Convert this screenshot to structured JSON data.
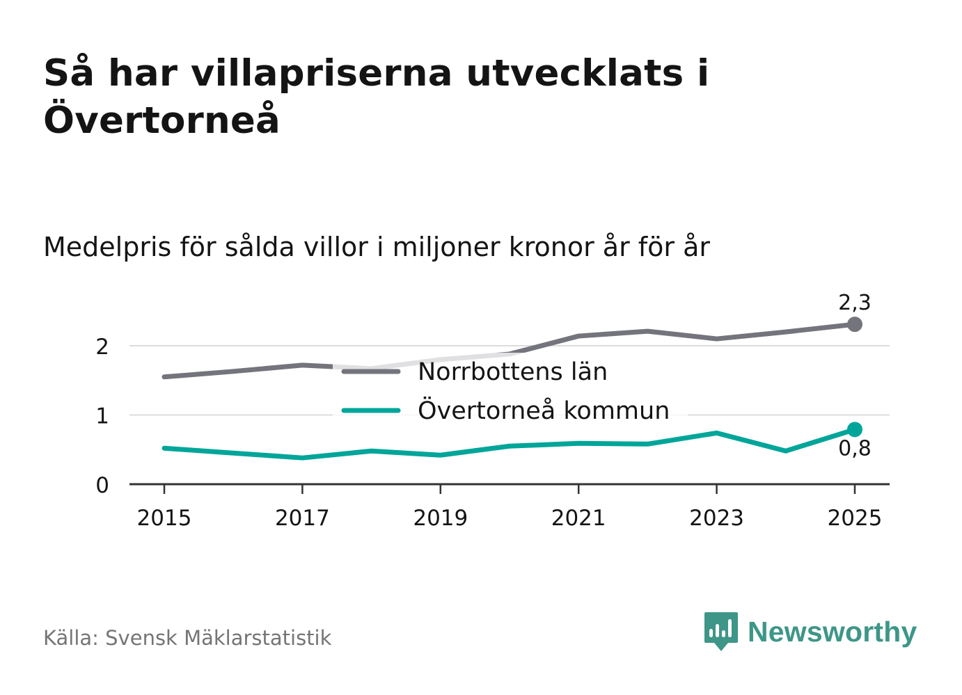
{
  "title": "Så har villapriserna utvecklats i Övertorneå",
  "subtitle": "Medelpris för sålda villor i miljoner kronor år för år",
  "source": "Källa: Svensk Mäklarstatistik",
  "brand": {
    "name": "Newsworthy",
    "icon": "newsworthy-logo-icon",
    "color": "#3e9688"
  },
  "chart_data": {
    "type": "line",
    "x": [
      2015,
      2016,
      2017,
      2018,
      2019,
      2020,
      2021,
      2022,
      2023,
      2024,
      2025
    ],
    "xticks": [
      "2015",
      "2017",
      "2019",
      "2021",
      "2023",
      "2025"
    ],
    "yticks": [
      "0",
      "1",
      "2"
    ],
    "ylim": [
      0,
      2.5
    ],
    "grid": true,
    "legend_position": "center",
    "series": [
      {
        "name": "Norrbottens län",
        "color": "#74747c",
        "values": [
          1.55,
          1.63,
          1.72,
          1.67,
          1.8,
          1.88,
          2.14,
          2.21,
          2.1,
          2.2,
          2.31
        ],
        "end_label": "2,3"
      },
      {
        "name": "Övertorneå kommun",
        "color": "#00a59a",
        "values": [
          0.52,
          0.45,
          0.38,
          0.48,
          0.42,
          0.55,
          0.59,
          0.58,
          0.74,
          0.48,
          0.79
        ],
        "end_label": "0,8"
      }
    ],
    "xlabel": "",
    "ylabel": ""
  }
}
